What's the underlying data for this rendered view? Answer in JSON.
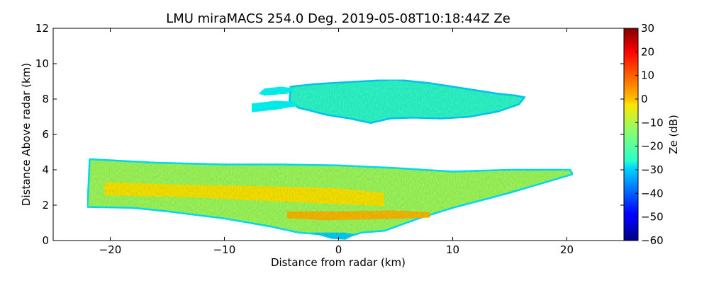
{
  "chart_data": {
    "type": "heatmap",
    "title": "LMU miraMACS 254.0 Deg. 2019-05-08T10:18:44Z  Ze",
    "xlabel": "Distance from radar (km)",
    "ylabel": "Distance Above radar  (km)",
    "xlim": [
      -25,
      25
    ],
    "ylim": [
      0,
      12
    ],
    "xticks": [
      -20,
      -10,
      0,
      10,
      20
    ],
    "xtick_labels": [
      "−20",
      "−10",
      "0",
      "10",
      "20"
    ],
    "yticks": [
      0,
      2,
      4,
      6,
      8,
      10,
      12
    ],
    "ytick_labels": [
      "0",
      "2",
      "4",
      "6",
      "8",
      "10",
      "12"
    ],
    "grid": false,
    "colorbar": {
      "label": "Ze (dB)",
      "range": [
        -60,
        30
      ],
      "ticks": [
        30,
        20,
        10,
        0,
        -10,
        -20,
        -30,
        -40,
        -50,
        -60
      ],
      "tick_labels": [
        "30",
        "20",
        "10",
        "0",
        "−10",
        "−20",
        "−30",
        "−40",
        "−50",
        "−60"
      ],
      "colormap": "jet"
    },
    "regions": [
      {
        "name": "upper cloud layer",
        "ze_dB": -22,
        "edge_ze_dB": -30,
        "outline": [
          [
            -4.2,
            8.7
          ],
          [
            -2,
            8.85
          ],
          [
            2,
            9.0
          ],
          [
            5,
            9.1
          ],
          [
            8,
            8.9
          ],
          [
            11,
            8.6
          ],
          [
            14,
            8.3
          ],
          [
            15.5,
            8.2
          ],
          [
            16.3,
            8.1
          ],
          [
            15.8,
            7.7
          ],
          [
            14,
            7.3
          ],
          [
            11.5,
            7.0
          ],
          [
            9,
            6.9
          ],
          [
            6.5,
            6.95
          ],
          [
            4.5,
            6.9
          ],
          [
            2.8,
            6.65
          ],
          [
            1,
            6.9
          ],
          [
            -1,
            7.1
          ],
          [
            -2.8,
            7.4
          ],
          [
            -3.5,
            7.5
          ],
          [
            -4.3,
            7.9
          ]
        ]
      },
      {
        "name": "upper cloud fragment",
        "ze_dB": -26,
        "outline": [
          [
            -6.5,
            8.6
          ],
          [
            -5,
            8.7
          ],
          [
            -3.8,
            8.6
          ],
          [
            -4.5,
            8.3
          ],
          [
            -6.5,
            8.2
          ],
          [
            -7,
            8.3
          ]
        ]
      },
      {
        "name": "upper cloud fragment",
        "ze_dB": -26,
        "outline": [
          [
            -7.6,
            7.75
          ],
          [
            -5.5,
            7.9
          ],
          [
            -3.8,
            7.85
          ],
          [
            -3.6,
            7.6
          ],
          [
            -5.5,
            7.4
          ],
          [
            -7.6,
            7.25
          ]
        ]
      },
      {
        "name": "lower cloud layer",
        "ze_dB": -12,
        "edge_ze_dB": -28,
        "outline": [
          [
            -21.8,
            4.6
          ],
          [
            -16,
            4.4
          ],
          [
            -10,
            4.3
          ],
          [
            -5,
            4.3
          ],
          [
            0,
            4.25
          ],
          [
            5,
            4.1
          ],
          [
            10,
            3.9
          ],
          [
            15,
            4.0
          ],
          [
            20.3,
            4.0
          ],
          [
            20.5,
            3.75
          ],
          [
            15,
            2.7
          ],
          [
            10,
            1.85
          ],
          [
            7,
            1.25
          ],
          [
            4,
            0.55
          ],
          [
            2,
            0.45
          ],
          [
            0.5,
            0.15
          ],
          [
            -0.5,
            0.3
          ],
          [
            -3.5,
            0.45
          ],
          [
            -6,
            0.8
          ],
          [
            -10,
            1.25
          ],
          [
            -15,
            1.65
          ],
          [
            -18,
            1.85
          ],
          [
            -22,
            1.9
          ]
        ]
      },
      {
        "name": "lower layer reflectivity core",
        "ze_dB": -2,
        "outline": [
          [
            -20.5,
            3.3
          ],
          [
            -13,
            3.15
          ],
          [
            -5,
            3.05
          ],
          [
            0,
            2.95
          ],
          [
            4,
            2.7
          ],
          [
            4,
            1.95
          ],
          [
            0,
            2.05
          ],
          [
            -5,
            2.2
          ],
          [
            -13,
            2.45
          ],
          [
            -20.5,
            2.55
          ]
        ]
      },
      {
        "name": "lower layer enhanced band",
        "ze_dB": 2,
        "outline": [
          [
            -4.5,
            1.65
          ],
          [
            0,
            1.65
          ],
          [
            5,
            1.7
          ],
          [
            8,
            1.6
          ],
          [
            8,
            1.3
          ],
          [
            3,
            1.2
          ],
          [
            -1,
            1.15
          ],
          [
            -4.5,
            1.25
          ]
        ]
      },
      {
        "name": "lower layer base",
        "ze_dB": -30,
        "outline": [
          [
            -2.5,
            0.45
          ],
          [
            -0.5,
            0.45
          ],
          [
            0.5,
            0.45
          ],
          [
            1.5,
            0.35
          ],
          [
            0.6,
            0.05
          ],
          [
            -0.6,
            0.1
          ]
        ]
      }
    ]
  }
}
